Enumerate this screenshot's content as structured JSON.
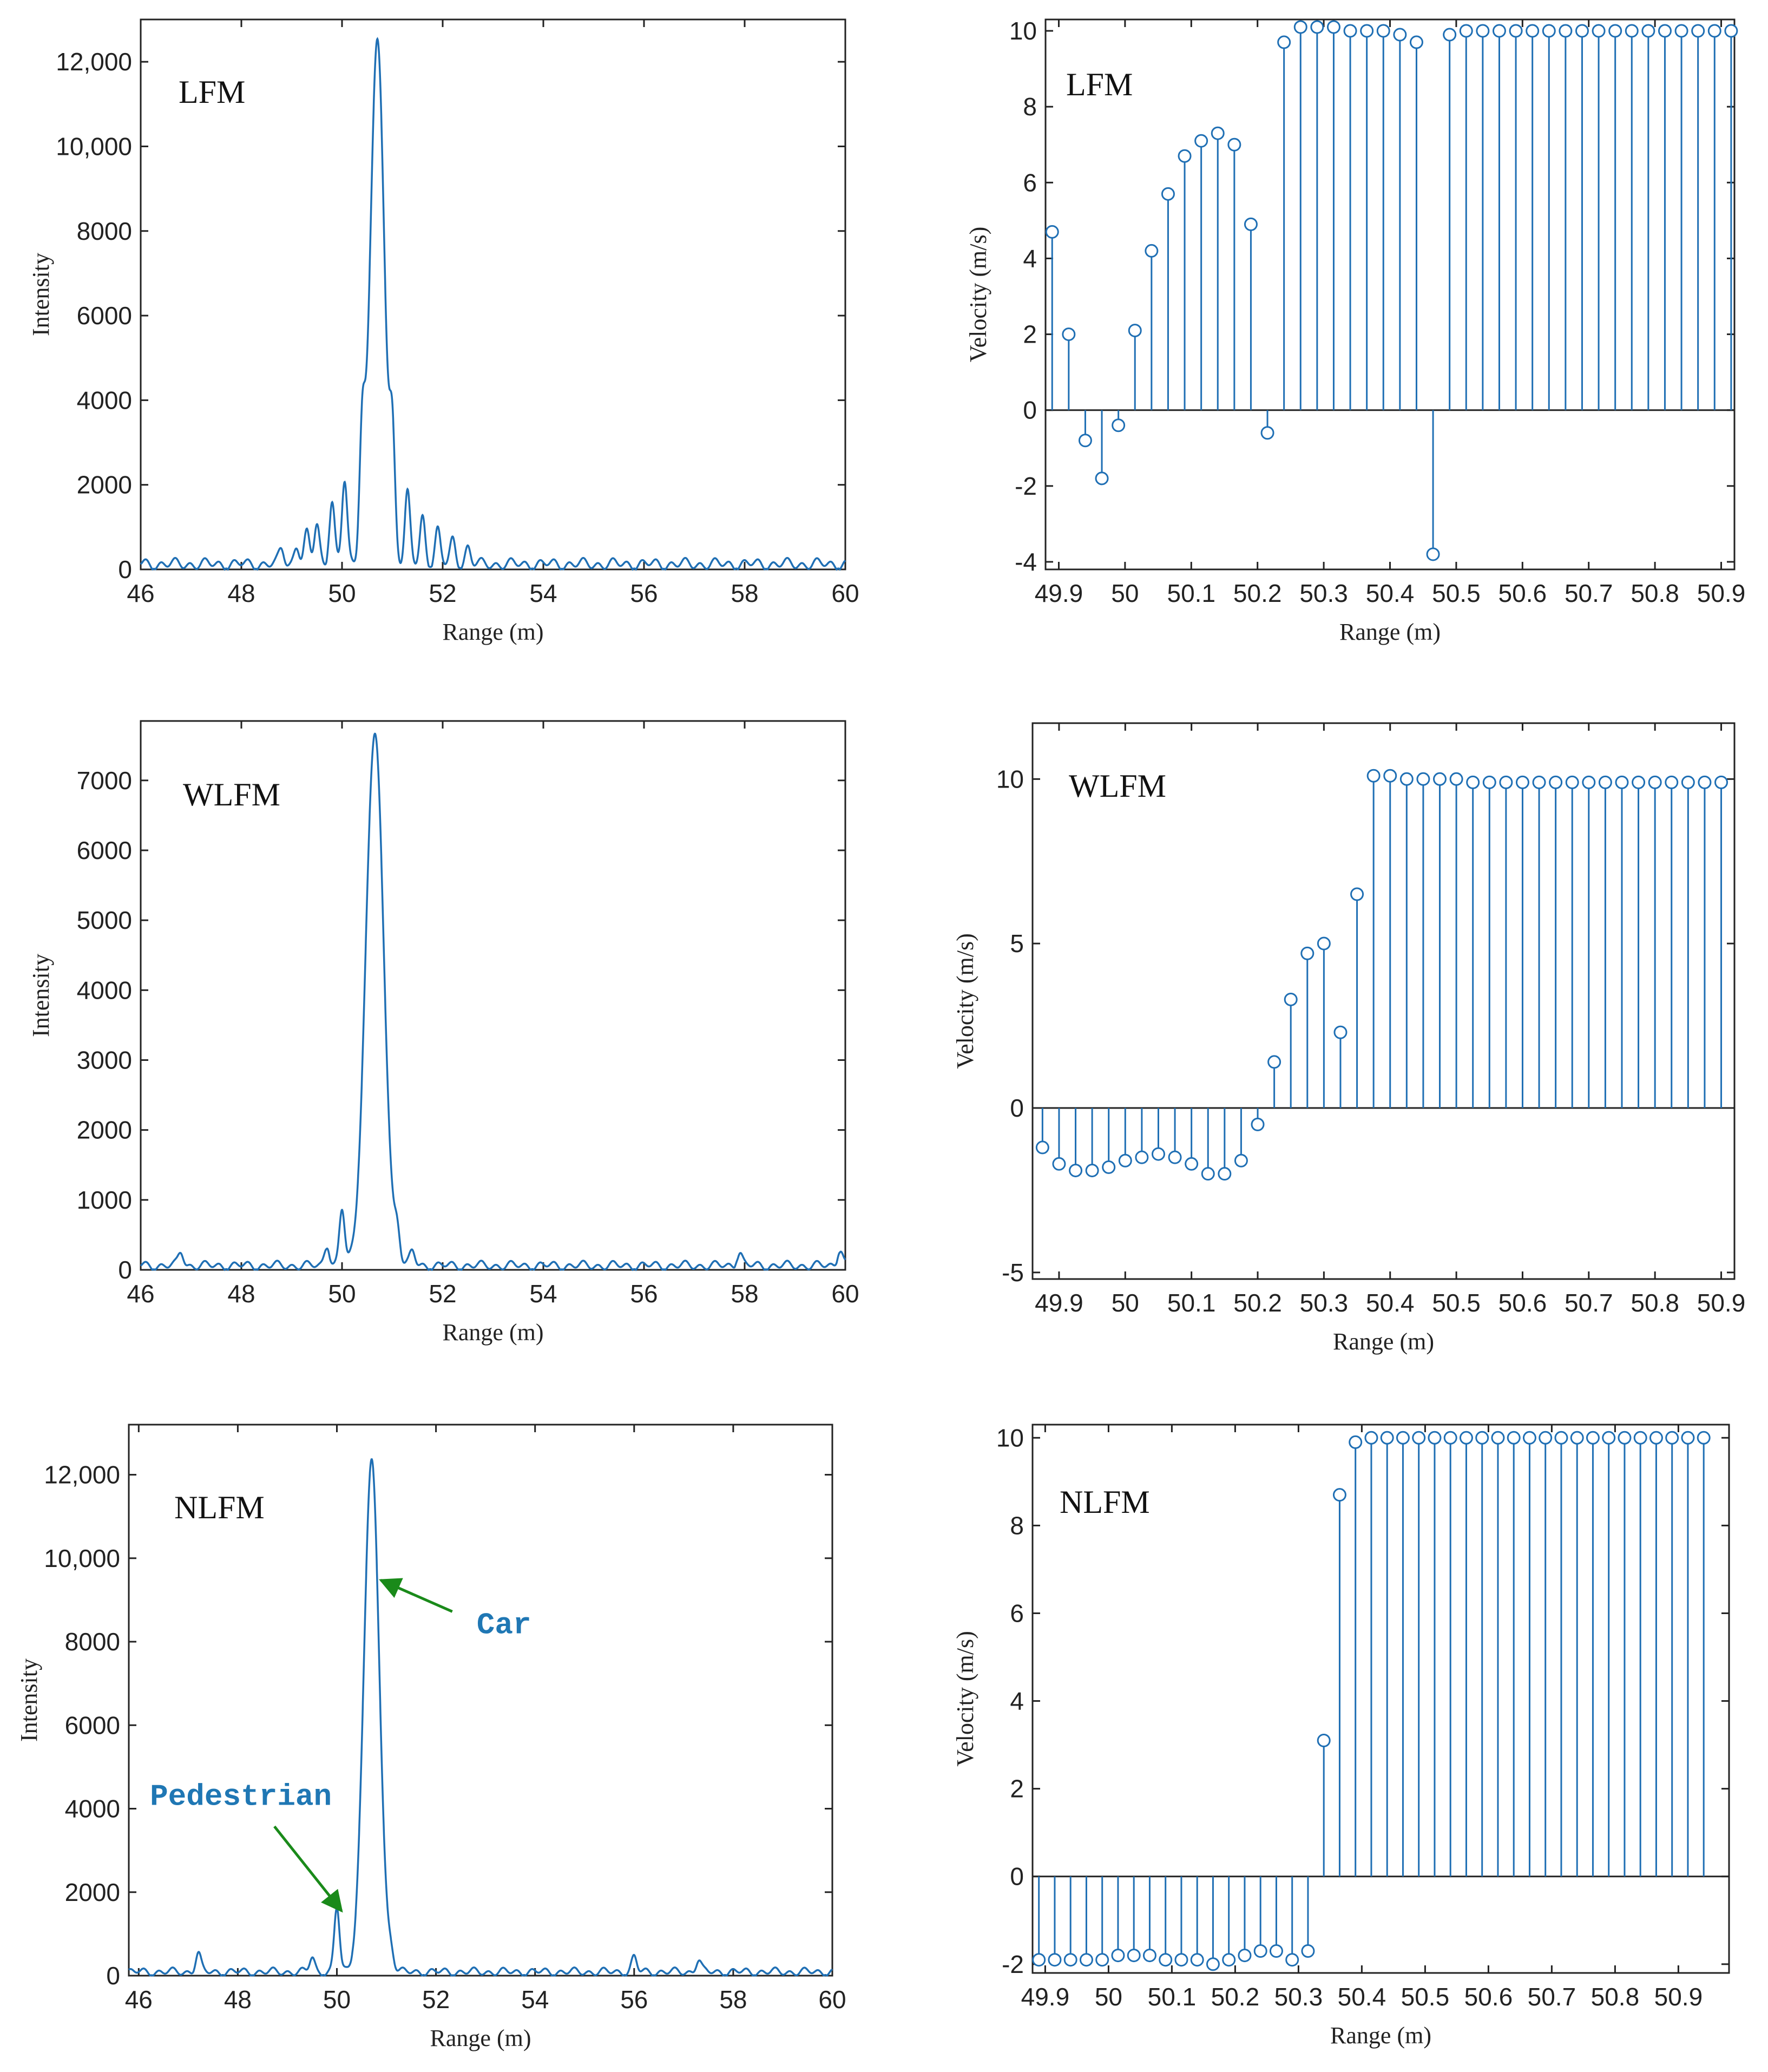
{
  "colors": {
    "series": "#1f6fb4",
    "arrow": "#1a8a1a",
    "annotation_text": "#1f77b4",
    "axis": "#222222"
  },
  "chart_data": [
    {
      "type": "line",
      "label": "LFM",
      "xlabel": "Range (m)",
      "ylabel": "Intensity",
      "xlim": [
        46,
        60
      ],
      "ylim": [
        0,
        13000
      ],
      "xticks": [
        46,
        48,
        50,
        52,
        54,
        56,
        58,
        60
      ],
      "yticks": [
        0,
        2000,
        4000,
        6000,
        8000,
        10000,
        12000
      ],
      "yticklabels": [
        "0",
        "2000",
        "4000",
        "6000",
        "8000",
        "10,000",
        "12,000"
      ],
      "peak": {
        "x": 50.7,
        "y": 12300,
        "width": 0.2
      },
      "sidelobes": [
        [
          49.1,
          450
        ],
        [
          49.3,
          700
        ],
        [
          49.5,
          950
        ],
        [
          49.8,
          1500
        ],
        [
          50.05,
          1950
        ],
        [
          50.4,
          2650
        ],
        [
          51.0,
          2500
        ],
        [
          51.3,
          1650
        ],
        [
          51.6,
          1100
        ],
        [
          51.9,
          800
        ],
        [
          52.2,
          550
        ],
        [
          52.5,
          400
        ],
        [
          48.8,
          350
        ]
      ],
      "noise_level": 250,
      "grid": false
    },
    {
      "type": "stem",
      "label": "LFM",
      "xlabel": "Range (m)",
      "ylabel": "Velocity (m/s)",
      "xlim": [
        49.88,
        50.92
      ],
      "ylim": [
        -4.2,
        10.3
      ],
      "xticks": [
        49.9,
        50,
        50.1,
        50.2,
        50.3,
        50.4,
        50.5,
        50.6,
        50.7,
        50.8,
        50.9
      ],
      "yticks": [
        -4,
        -2,
        0,
        2,
        4,
        6,
        8,
        10
      ],
      "x_start": 49.89,
      "x_step": 0.025,
      "values": [
        4.7,
        2.0,
        -0.8,
        -1.8,
        -0.4,
        2.1,
        4.2,
        5.7,
        6.7,
        7.1,
        7.3,
        7.0,
        4.9,
        -0.6,
        9.7,
        10.1,
        10.1,
        10.1,
        10.0,
        10.0,
        10.0,
        9.9,
        9.7,
        -3.8,
        9.9,
        10.0,
        10.0,
        10.0,
        10.0,
        10.0,
        10.0,
        10.0,
        10.0,
        10.0,
        10.0,
        10.0,
        10.0,
        10.0,
        10.0,
        10.0,
        10.0,
        10.0
      ],
      "grid": false
    },
    {
      "type": "line",
      "label": "WLFM",
      "xlabel": "Range (m)",
      "ylabel": "Intensity",
      "xlim": [
        46,
        60
      ],
      "ylim": [
        0,
        7850
      ],
      "xticks": [
        46,
        48,
        50,
        52,
        54,
        56,
        58,
        60
      ],
      "yticks": [
        0,
        1000,
        2000,
        3000,
        4000,
        5000,
        6000,
        7000
      ],
      "yticklabels": [
        "0",
        "1000",
        "2000",
        "3000",
        "4000",
        "5000",
        "6000",
        "7000"
      ],
      "peak": {
        "x": 50.65,
        "y": 7600,
        "width": 0.25
      },
      "sidelobes": [
        [
          50.0,
          800
        ],
        [
          49.7,
          300
        ],
        [
          51.1,
          400
        ],
        [
          51.4,
          200
        ],
        [
          46.8,
          200
        ],
        [
          57.9,
          200
        ],
        [
          59.9,
          250
        ]
      ],
      "noise_level": 120,
      "grid": false
    },
    {
      "type": "stem",
      "label": "WLFM",
      "xlabel": "Range (m)",
      "ylabel": "Velocity (m/s)",
      "xlim": [
        49.86,
        50.92
      ],
      "ylim": [
        -5.2,
        11.7
      ],
      "xticks": [
        49.9,
        50,
        50.1,
        50.2,
        50.3,
        50.4,
        50.5,
        50.6,
        50.7,
        50.8,
        50.9
      ],
      "yticks": [
        -5,
        0,
        5,
        10
      ],
      "x_start": 49.875,
      "x_step": 0.025,
      "values": [
        -1.2,
        -1.7,
        -1.9,
        -1.9,
        -1.8,
        -1.6,
        -1.5,
        -1.4,
        -1.5,
        -1.7,
        -2.0,
        -2.0,
        -1.6,
        -0.5,
        1.4,
        3.3,
        4.7,
        5.0,
        2.3,
        6.5,
        10.1,
        10.1,
        10.0,
        10.0,
        10.0,
        10.0,
        9.9,
        9.9,
        9.9,
        9.9,
        9.9,
        9.9,
        9.9,
        9.9,
        9.9,
        9.9,
        9.9,
        9.9,
        9.9,
        9.9,
        9.9,
        9.9
      ],
      "grid": false
    },
    {
      "type": "line",
      "label": "NLFM",
      "xlabel": "Range (m)",
      "ylabel": "Intensity",
      "xlim": [
        45.8,
        60
      ],
      "ylim": [
        0,
        13200
      ],
      "xticks": [
        46,
        48,
        50,
        52,
        54,
        56,
        58,
        60
      ],
      "yticks": [
        0,
        2000,
        4000,
        6000,
        8000,
        10000,
        12000
      ],
      "yticklabels": [
        "0",
        "2000",
        "4000",
        "6000",
        "8000",
        "10,000",
        "12,000"
      ],
      "peak": {
        "x": 50.7,
        "y": 12200,
        "width": 0.22
      },
      "sidelobes": [
        [
          50.0,
          1550
        ],
        [
          49.5,
          350
        ],
        [
          47.2,
          450
        ],
        [
          51.1,
          300
        ],
        [
          56.0,
          350
        ],
        [
          57.3,
          300
        ]
      ],
      "noise_level": 180,
      "annotations": [
        {
          "text": "Car",
          "points_to": [
            50.8,
            9500
          ]
        },
        {
          "text": "Pedestrian",
          "points_to": [
            50.05,
            1500
          ]
        }
      ],
      "grid": false
    },
    {
      "type": "stem",
      "label": "NLFM",
      "xlabel": "Range (m)",
      "ylabel": "Velocity (m/s)",
      "xlim": [
        49.88,
        50.98
      ],
      "ylim": [
        -2.2,
        10.3
      ],
      "xticks": [
        49.9,
        50,
        50.1,
        50.2,
        50.3,
        50.4,
        50.5,
        50.6,
        50.7,
        50.8,
        50.9
      ],
      "yticks": [
        -2,
        0,
        2,
        4,
        6,
        8,
        10
      ],
      "x_start": 49.89,
      "x_step": 0.025,
      "values": [
        -1.9,
        -1.9,
        -1.9,
        -1.9,
        -1.9,
        -1.8,
        -1.8,
        -1.8,
        -1.9,
        -1.9,
        -1.9,
        -2.0,
        -1.9,
        -1.8,
        -1.7,
        -1.7,
        -1.9,
        -1.7,
        3.1,
        8.7,
        9.9,
        10.0,
        10.0,
        10.0,
        10.0,
        10.0,
        10.0,
        10.0,
        10.0,
        10.0,
        10.0,
        10.0,
        10.0,
        10.0,
        10.0,
        10.0,
        10.0,
        10.0,
        10.0,
        10.0,
        10.0,
        10.0,
        10.0
      ],
      "grid": false
    }
  ]
}
